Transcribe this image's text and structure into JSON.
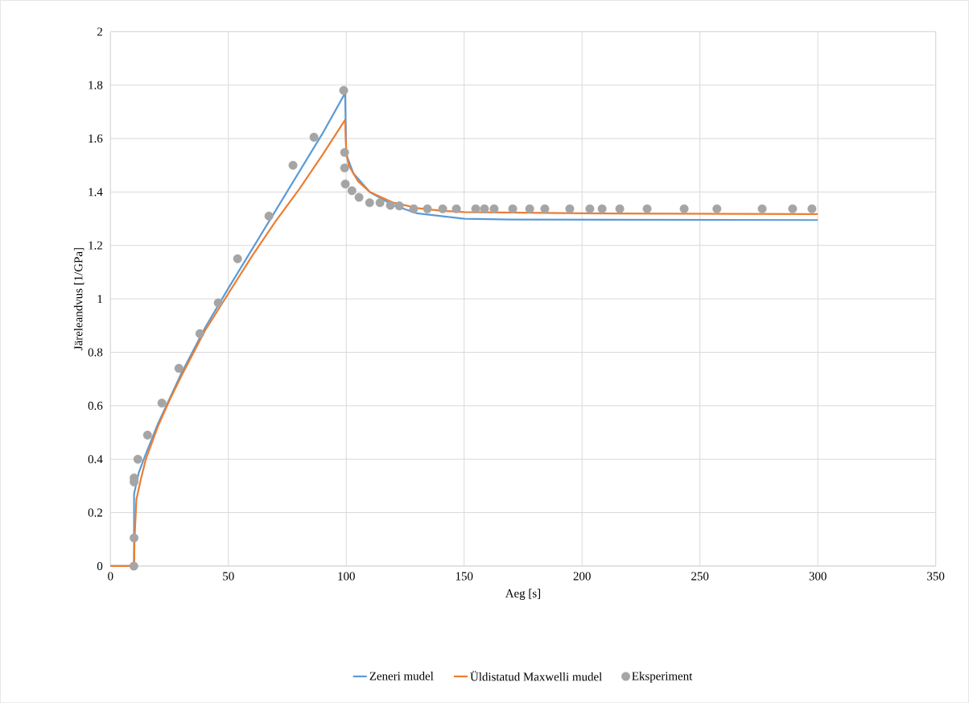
{
  "chart_data": {
    "type": "line",
    "xlabel": "Aeg [s]",
    "ylabel": "Järeleandvus [1/GPa]",
    "xlim": [
      0,
      350
    ],
    "ylim": [
      0,
      2
    ],
    "xticks": [
      0,
      50,
      100,
      150,
      200,
      250,
      300,
      350
    ],
    "yticks": [
      0,
      0.2,
      0.4,
      0.6,
      0.8,
      1,
      1.2,
      1.4,
      1.6,
      1.8,
      2
    ],
    "grid": true,
    "legend": "bottom",
    "series": [
      {
        "name": "Zeneri mudel",
        "color": "#5b9bd5",
        "marker": "none",
        "x": [
          0,
          10,
          10,
          12,
          15,
          20,
          30,
          40,
          50,
          70,
          90,
          99.5,
          100,
          103,
          110,
          120,
          130,
          150,
          170,
          300
        ],
        "values": [
          0,
          0,
          0.27,
          0.35,
          0.42,
          0.53,
          0.72,
          0.89,
          1.04,
          1.33,
          1.62,
          1.77,
          1.54,
          1.47,
          1.4,
          1.35,
          1.32,
          1.3,
          1.297,
          1.295
        ]
      },
      {
        "name": "Üldistatud Maxwelli mudel",
        "color": "#ed7d31",
        "marker": "none",
        "x": [
          0,
          10,
          10.2,
          11,
          13,
          15,
          20,
          25,
          30,
          40,
          50,
          60,
          70,
          80,
          90,
          99.5,
          100,
          101,
          105,
          110,
          120,
          130,
          140,
          150,
          200,
          300
        ],
        "values": [
          0,
          0,
          0.1,
          0.25,
          0.33,
          0.4,
          0.52,
          0.62,
          0.71,
          0.88,
          1.02,
          1.16,
          1.29,
          1.41,
          1.54,
          1.67,
          1.55,
          1.5,
          1.44,
          1.4,
          1.36,
          1.34,
          1.33,
          1.325,
          1.32,
          1.317
        ]
      },
      {
        "name": "Eksperiment",
        "type": "scatter",
        "color": "#a5a5a5",
        "marker": "circle",
        "x": [
          9.9,
          10,
          10,
          10,
          11.6,
          15.7,
          21.8,
          29,
          37.9,
          45.7,
          53.9,
          67.2,
          77.4,
          86.3,
          98.9,
          99.3,
          99.3,
          99.6,
          102.4,
          105.4,
          109.9,
          114.3,
          118.7,
          122.5,
          128.6,
          134.4,
          140.9,
          146.7,
          154.9,
          158.6,
          162.7,
          170.6,
          177.8,
          184.2,
          194.8,
          203.3,
          208.5,
          216,
          227.6,
          243.3,
          257.2,
          276.4,
          289.3,
          297.5
        ],
        "values": [
          0,
          0.105,
          0.315,
          0.33,
          0.4,
          0.49,
          0.61,
          0.74,
          0.87,
          0.985,
          1.15,
          1.31,
          1.5,
          1.605,
          1.78,
          1.548,
          1.49,
          1.43,
          1.405,
          1.38,
          1.36,
          1.36,
          1.35,
          1.348,
          1.337,
          1.337,
          1.337,
          1.337,
          1.337,
          1.337,
          1.337,
          1.337,
          1.337,
          1.337,
          1.337,
          1.337,
          1.337,
          1.337,
          1.337,
          1.337,
          1.337,
          1.337,
          1.337,
          1.337
        ]
      }
    ]
  }
}
